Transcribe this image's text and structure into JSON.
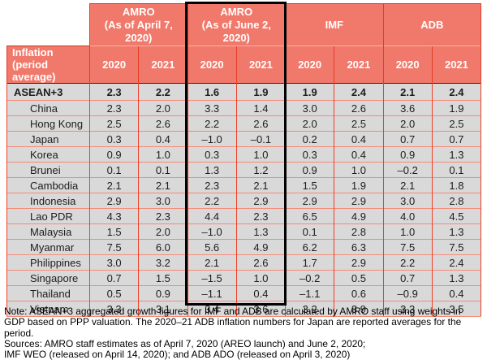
{
  "colors": {
    "header_bg": "#F0796B",
    "header_text": "#FFFFFF",
    "grid_vertical": "#EE3F27",
    "grid_horizontal": "#F58A76",
    "row_bg": "#D9D9D9",
    "highlight_border": "#000000"
  },
  "chart_data": {
    "type": "table",
    "row_header_line1": "Inflation",
    "row_header_line2": "(period average)",
    "groups": [
      {
        "label": "AMRO",
        "sublabel": "(As of April 7, 2020)",
        "highlighted": false
      },
      {
        "label": "AMRO",
        "sublabel": "(As of June 2, 2020)",
        "highlighted": true
      },
      {
        "label": "IMF",
        "sublabel": "",
        "highlighted": false
      },
      {
        "label": "ADB",
        "sublabel": "",
        "highlighted": false
      }
    ],
    "year_headers": [
      "2020",
      "2021",
      "2020",
      "2021",
      "2020",
      "2021",
      "2020",
      "2021"
    ],
    "rows": [
      {
        "label": "ASEAN+3",
        "bold": true,
        "values": [
          "2.3",
          "2.2",
          "1.6",
          "1.9",
          "1.9",
          "2.4",
          "2.1",
          "2.4"
        ]
      },
      {
        "label": "China",
        "bold": false,
        "values": [
          "2.3",
          "2.0",
          "3.3",
          "1.4",
          "3.0",
          "2.6",
          "3.6",
          "1.9"
        ]
      },
      {
        "label": "Hong Kong",
        "bold": false,
        "values": [
          "2.5",
          "2.6",
          "2.2",
          "2.6",
          "2.0",
          "2.5",
          "2.0",
          "2.5"
        ]
      },
      {
        "label": "Japan",
        "bold": false,
        "values": [
          "0.3",
          "0.4",
          "–1.0",
          "–0.1",
          "0.2",
          "0.4",
          "0.7",
          "0.7"
        ]
      },
      {
        "label": "Korea",
        "bold": false,
        "values": [
          "0.9",
          "1.0",
          "0.3",
          "1.0",
          "0.3",
          "0.4",
          "0.9",
          "1.3"
        ]
      },
      {
        "label": "Brunei",
        "bold": false,
        "values": [
          "0.1",
          "0.1",
          "1.3",
          "1.2",
          "0.9",
          "1.0",
          "–0.2",
          "0.1"
        ]
      },
      {
        "label": "Cambodia",
        "bold": false,
        "values": [
          "2.1",
          "2.1",
          "2.3",
          "2.1",
          "1.5",
          "1.9",
          "2.1",
          "1.8"
        ]
      },
      {
        "label": "Indonesia",
        "bold": false,
        "values": [
          "2.9",
          "3.0",
          "2.2",
          "2.9",
          "2.9",
          "2.9",
          "3.0",
          "2.8"
        ]
      },
      {
        "label": "Lao PDR",
        "bold": false,
        "values": [
          "4.3",
          "2.3",
          "4.4",
          "2.3",
          "6.5",
          "4.9",
          "4.0",
          "4.5"
        ]
      },
      {
        "label": "Malaysia",
        "bold": false,
        "values": [
          "1.5",
          "2.0",
          "–1.0",
          "1.3",
          "0.1",
          "2.8",
          "1.0",
          "1.3"
        ]
      },
      {
        "label": "Myanmar",
        "bold": false,
        "values": [
          "7.5",
          "6.0",
          "5.6",
          "4.9",
          "6.2",
          "6.3",
          "7.5",
          "7.5"
        ]
      },
      {
        "label": "Philippines",
        "bold": false,
        "values": [
          "3.0",
          "3.2",
          "2.1",
          "2.6",
          "1.7",
          "2.9",
          "2.2",
          "2.4"
        ]
      },
      {
        "label": "Singapore",
        "bold": false,
        "values": [
          "0.7",
          "1.5",
          "–1.5",
          "1.0",
          "–0.2",
          "0.5",
          "0.7",
          "1.3"
        ]
      },
      {
        "label": "Thailand",
        "bold": false,
        "values": [
          "0.5",
          "0.9",
          "–1.1",
          "0.4",
          "–1.1",
          "0.6",
          "–0.9",
          "0.4"
        ]
      },
      {
        "label": "Vietnam",
        "bold": false,
        "values": [
          "3.3",
          "3.1",
          "3.4",
          "3.6",
          "3.2",
          "3.9",
          "3.3",
          "3.5"
        ]
      }
    ]
  },
  "notes": {
    "lines": [
      "Note: ASEAN+3 aggregated growth figures for IMF and ADB are calculated by AMRO staff using weights in",
      "GDP based on PPP valuation. The 2020–21 ADB inflation numbers for Japan are reported averages for the",
      "period.",
      "Sources: AMRO staff estimates as of April 7, 2020 (AREO launch) and June 2, 2020;",
      "IMF WEO (released on April 14, 2020); and ADB ADO (released on April 3, 2020)"
    ]
  }
}
